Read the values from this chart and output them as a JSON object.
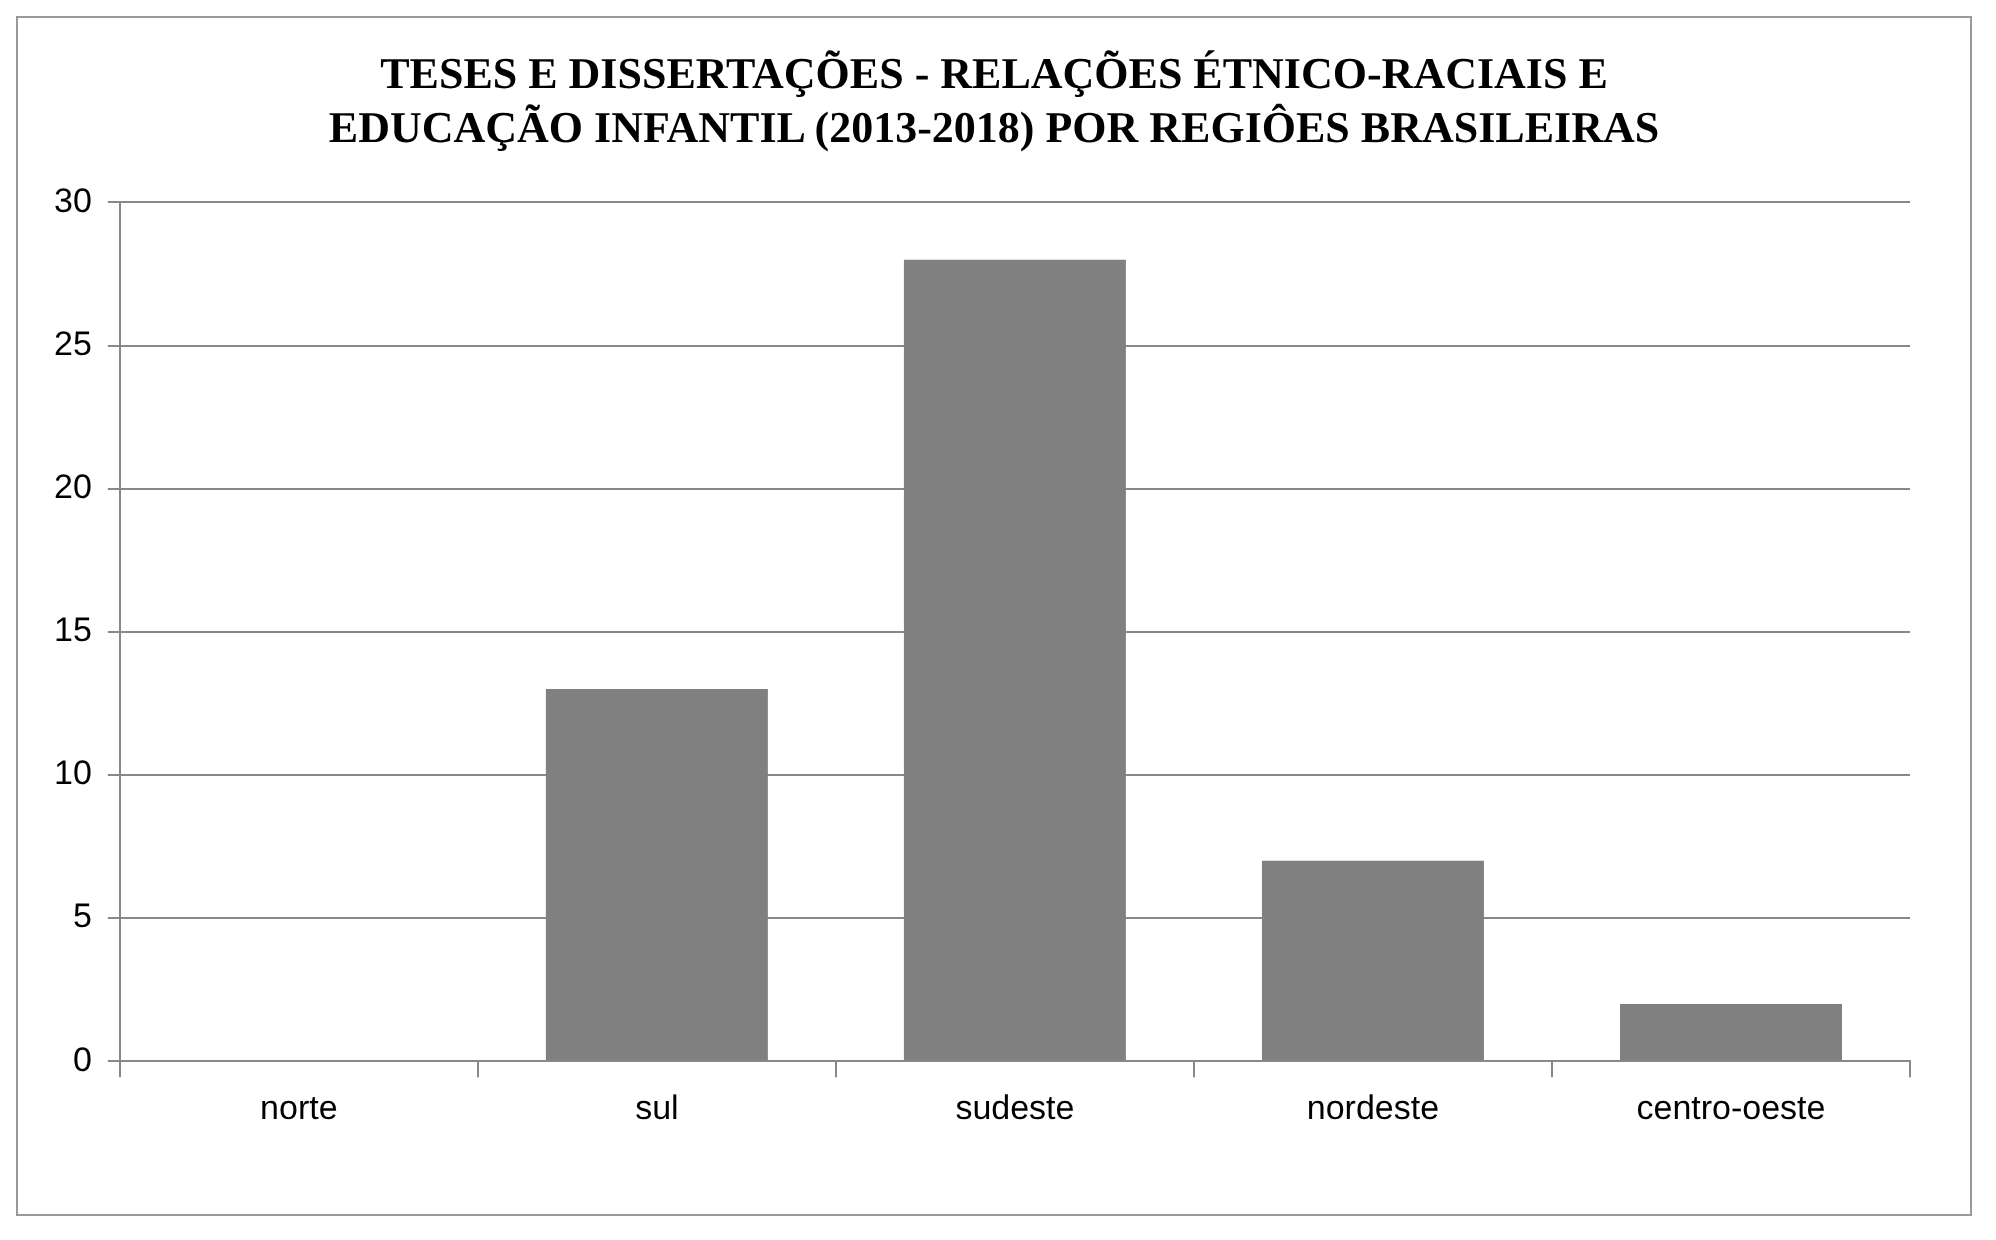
{
  "chart_data": {
    "type": "bar",
    "title": "TESES E DISSERTAÇÕES - RELAÇÕES ÉTNICO-RACIAIS E EDUCAÇÃO INFANTIL (2013-2018) POR REGIÔES BRASILEIRAS",
    "categories": [
      "norte",
      "sul",
      "sudeste",
      "nordeste",
      "centro-oeste"
    ],
    "values": [
      0,
      13,
      28,
      7,
      2
    ],
    "color": "#808080",
    "ylim": [
      0,
      30
    ],
    "yticks": [
      0,
      5,
      10,
      15,
      20,
      25,
      30
    ],
    "grid": "y",
    "legend": false
  }
}
